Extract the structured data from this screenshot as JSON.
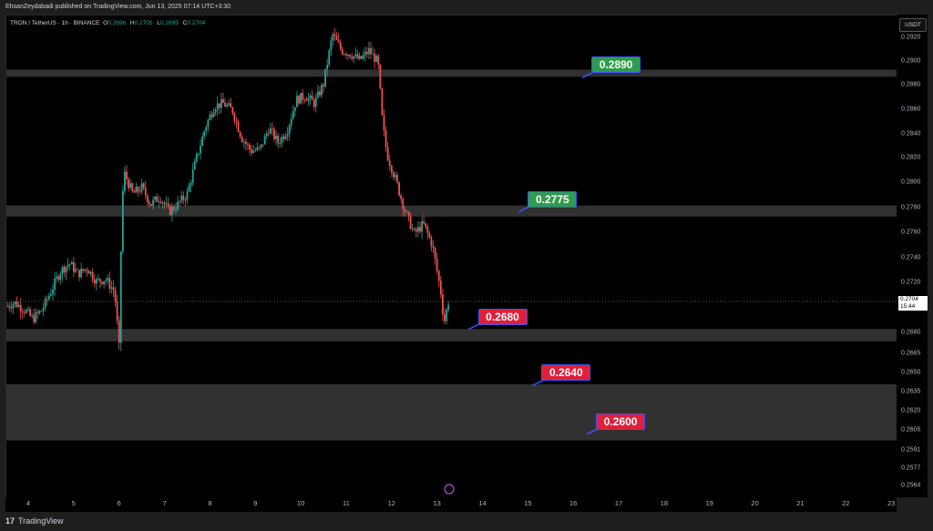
{
  "header": {
    "publisher_line": "EhsanZeydabadi published on TradingView.com, Jun 13, 2025 07:14 UTC+3:30"
  },
  "symbol": {
    "name": "TRON / TetherUS · 1h · BINANCE",
    "o_label": "O",
    "o_value": "0.2696",
    "h_label": "H",
    "h_value": "0.2705",
    "l_label": "L",
    "l_value": "0.2695",
    "c_label": "C",
    "c_value": "0.2704"
  },
  "currency_badge": "USDT",
  "current_price": {
    "value": "0.2704",
    "countdown": "15:44"
  },
  "footer": {
    "brand": "TradingView",
    "logo_glyph": "17"
  },
  "colors": {
    "up": "#26a69a",
    "down": "#ef5350",
    "zone": "#5a5a5a",
    "callout_green": "#2e9d4c",
    "callout_red": "#e0203a",
    "callout_border": "#3a55ff"
  },
  "chart_data": {
    "type": "candlestick",
    "x_axis_ticks": [
      "4",
      "5",
      "6",
      "7",
      "8",
      "9",
      "10",
      "11",
      "12",
      "13",
      "14",
      "15",
      "16",
      "17",
      "18",
      "19",
      "20",
      "21",
      "22",
      "23"
    ],
    "y_axis_ticks": [
      "0.2920",
      "0.2900",
      "0.2880",
      "0.2860",
      "0.2840",
      "0.2820",
      "0.2800",
      "0.2780",
      "0.2760",
      "0.2740",
      "0.2720",
      "0.2704",
      "0.2680",
      "0.2665",
      "0.2650",
      "0.2635",
      "0.2620",
      "0.2605",
      "0.2591",
      "0.2577",
      "0.2564"
    ],
    "zones": [
      {
        "low": 0.2886,
        "high": 0.2892
      },
      {
        "low": 0.2772,
        "high": 0.2781
      },
      {
        "low": 0.2673,
        "high": 0.2682
      },
      {
        "low": 0.2597,
        "high": 0.264
      }
    ],
    "annotations": [
      {
        "label": "0.2890",
        "color": "green",
        "x_day": 16.4,
        "price": 0.2896
      },
      {
        "label": "0.2775",
        "color": "green",
        "x_day": 15.0,
        "price": 0.2786
      },
      {
        "label": "0.2680",
        "color": "red",
        "x_day": 13.9,
        "price": 0.2692
      },
      {
        "label": "0.2640",
        "color": "red",
        "x_day": 15.3,
        "price": 0.2649
      },
      {
        "label": "0.2600",
        "color": "red",
        "x_day": 16.5,
        "price": 0.2611
      }
    ],
    "price_path": [
      [
        3.5,
        0.27
      ],
      [
        3.7,
        0.2703
      ],
      [
        3.9,
        0.2698
      ],
      [
        4.1,
        0.269
      ],
      [
        4.3,
        0.2697
      ],
      [
        4.5,
        0.2712
      ],
      [
        4.7,
        0.2728
      ],
      [
        4.9,
        0.2735
      ],
      [
        5.1,
        0.2726
      ],
      [
        5.3,
        0.2731
      ],
      [
        5.5,
        0.272
      ],
      [
        5.7,
        0.2722
      ],
      [
        5.9,
        0.2712
      ],
      [
        6.0,
        0.2668
      ],
      [
        6.05,
        0.276
      ],
      [
        6.1,
        0.2808
      ],
      [
        6.3,
        0.279
      ],
      [
        6.5,
        0.2795
      ],
      [
        6.7,
        0.2782
      ],
      [
        6.9,
        0.2788
      ],
      [
        7.1,
        0.2776
      ],
      [
        7.3,
        0.2782
      ],
      [
        7.5,
        0.279
      ],
      [
        7.7,
        0.2818
      ],
      [
        7.9,
        0.2845
      ],
      [
        8.1,
        0.2862
      ],
      [
        8.3,
        0.2864
      ],
      [
        8.5,
        0.2858
      ],
      [
        8.7,
        0.2836
      ],
      [
        8.9,
        0.2825
      ],
      [
        9.1,
        0.2826
      ],
      [
        9.3,
        0.2844
      ],
      [
        9.5,
        0.2832
      ],
      [
        9.7,
        0.2842
      ],
      [
        9.9,
        0.2867
      ],
      [
        10.1,
        0.287
      ],
      [
        10.3,
        0.2864
      ],
      [
        10.5,
        0.288
      ],
      [
        10.7,
        0.2922
      ],
      [
        10.9,
        0.2908
      ],
      [
        11.1,
        0.2905
      ],
      [
        11.3,
        0.29
      ],
      [
        11.5,
        0.2908
      ],
      [
        11.7,
        0.2898
      ],
      [
        11.8,
        0.2848
      ],
      [
        11.9,
        0.2822
      ],
      [
        12.1,
        0.28
      ],
      [
        12.3,
        0.2776
      ],
      [
        12.5,
        0.2758
      ],
      [
        12.7,
        0.2766
      ],
      [
        12.9,
        0.2749
      ],
      [
        13.1,
        0.2708
      ],
      [
        13.15,
        0.2686
      ],
      [
        13.25,
        0.2704
      ]
    ]
  }
}
